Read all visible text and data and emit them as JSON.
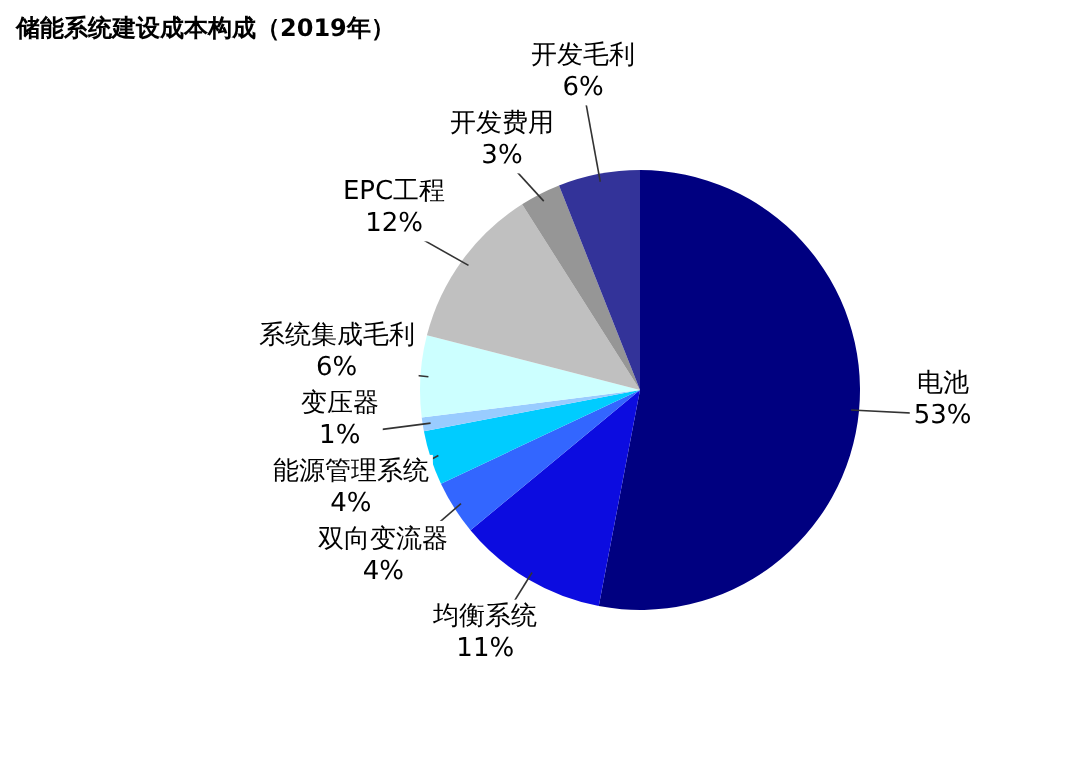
{
  "chart_data": {
    "type": "pie",
    "title": "储能系统建设成本构成（2019年）",
    "categories": [
      "电池",
      "均衡系统",
      "双向变流器",
      "能源管理系统",
      "变压器",
      "系统集成毛利",
      "EPC工程",
      "开发费用",
      "开发毛利"
    ],
    "values": [
      53,
      11,
      4,
      4,
      1,
      6,
      12,
      3,
      6
    ],
    "colors": [
      "#000080",
      "#0c0ce0",
      "#3366ff",
      "#00ccff",
      "#99ccff",
      "#ccffff",
      "#c0c0c0",
      "#969696",
      "#333399"
    ],
    "value_labels": [
      "53%",
      "11%",
      "4%",
      "4%",
      "1%",
      "6%",
      "12%",
      "3%",
      "6%"
    ],
    "legend": false
  }
}
